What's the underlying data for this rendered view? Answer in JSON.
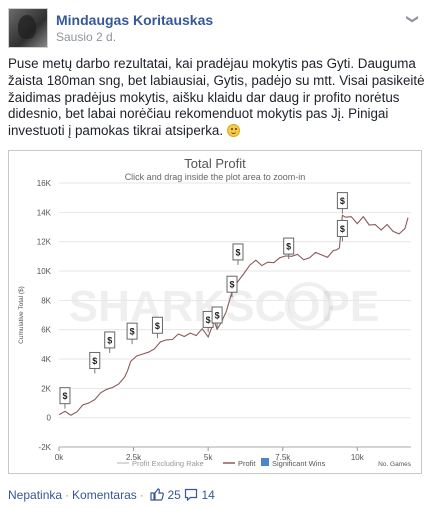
{
  "post": {
    "author": "Mindaugas Koritauskas",
    "time": "Sausio 2 d.",
    "text": "Puse metų darbo rezultatai, kai pradėjau mokytis pas Gyti. Dauguma žaista 180man sng, bet labiausiai, Gytis, padėjo su mtt. Visai pasikeitė žaidimas pradėjus mokytis, aišku klaidu dar daug ir profito norėtus didesnio, bet labai norėčiau rekomenduot mokytis pas Jį. Pinigai investuoti į pamokas tikrai atsiperka."
  },
  "footer": {
    "like_label": "Nepatinka",
    "comment_label": "Komentaras",
    "likes_count": "25",
    "comments_count": "14"
  },
  "colors": {
    "link": "#365899",
    "profit_line": "#8b5a5a",
    "significant_win": "#4a86c7",
    "grid": "#e6e6e6"
  },
  "chart_data": {
    "type": "line",
    "title": "Total Profit",
    "subtitle": "Click and drag inside the plot area to zoom-in",
    "ylabel": "Cumulative Total ($)",
    "xlabel": "No. Games",
    "watermark": "SHARKSCOPE",
    "xlim": [
      0,
      11800
    ],
    "ylim": [
      -2000,
      16000
    ],
    "x_ticks": [
      "0k",
      "2.5k",
      "5k",
      "7.5k",
      "10k"
    ],
    "x_tick_values": [
      0,
      2500,
      5000,
      7500,
      10000
    ],
    "y_ticks": [
      "-2K",
      "0",
      "2K",
      "4K",
      "6K",
      "8K",
      "10K",
      "12K",
      "14K",
      "16K"
    ],
    "y_tick_values": [
      -2000,
      0,
      2000,
      4000,
      6000,
      8000,
      10000,
      12000,
      14000,
      16000
    ],
    "legend": [
      "Profit Excluding Rake",
      "Profit",
      "Significant Wins"
    ],
    "legend_position": "bottom",
    "series": [
      {
        "name": "Profit",
        "x": [
          0,
          200,
          400,
          600,
          800,
          1000,
          1200,
          1400,
          1600,
          1800,
          2000,
          2200,
          2300,
          2400,
          2600,
          2800,
          3000,
          3200,
          3400,
          3600,
          3800,
          4000,
          4200,
          4400,
          4600,
          4800,
          5000,
          5100,
          5200,
          5300,
          5400,
          5600,
          5800,
          6000,
          6200,
          6400,
          6600,
          6800,
          7000,
          7200,
          7400,
          7600,
          7800,
          8000,
          8200,
          8400,
          8600,
          8800,
          9000,
          9200,
          9300,
          9400,
          9500,
          9600,
          9800,
          10000,
          10200,
          10400,
          10600,
          10800,
          11000,
          11200,
          11400,
          11600,
          11700
        ],
        "y": [
          100,
          400,
          200,
          500,
          800,
          1000,
          1300,
          1600,
          1900,
          2100,
          2400,
          2700,
          3200,
          3900,
          4100,
          4300,
          4500,
          4800,
          5100,
          5300,
          5400,
          5600,
          5500,
          5800,
          5700,
          6000,
          5500,
          6100,
          6500,
          6000,
          6400,
          7300,
          8500,
          9300,
          9900,
          10300,
          10700,
          10400,
          10700,
          10500,
          10900,
          11100,
          10900,
          11100,
          10800,
          11000,
          11200,
          11100,
          11000,
          11300,
          11400,
          11600,
          13900,
          13600,
          13700,
          13300,
          13600,
          13100,
          13200,
          12900,
          13100,
          12700,
          12600,
          12800,
          13600
        ]
      }
    ],
    "significant_wins": [
      {
        "x": 200,
        "y": 1500,
        "label": "$"
      },
      {
        "x": 1200,
        "y": 3900,
        "label": "$"
      },
      {
        "x": 1700,
        "y": 5300,
        "label": "$"
      },
      {
        "x": 2450,
        "y": 5900,
        "label": "$"
      },
      {
        "x": 3300,
        "y": 6300,
        "label": "$"
      },
      {
        "x": 5000,
        "y": 6700,
        "label": "$"
      },
      {
        "x": 5300,
        "y": 7000,
        "label": "$"
      },
      {
        "x": 5800,
        "y": 9100,
        "label": "$"
      },
      {
        "x": 6000,
        "y": 11300,
        "label": "$"
      },
      {
        "x": 7700,
        "y": 11700,
        "label": "$"
      },
      {
        "x": 9500,
        "y": 12900,
        "label": "$"
      },
      {
        "x": 9500,
        "y": 14800,
        "label": "$"
      }
    ]
  }
}
